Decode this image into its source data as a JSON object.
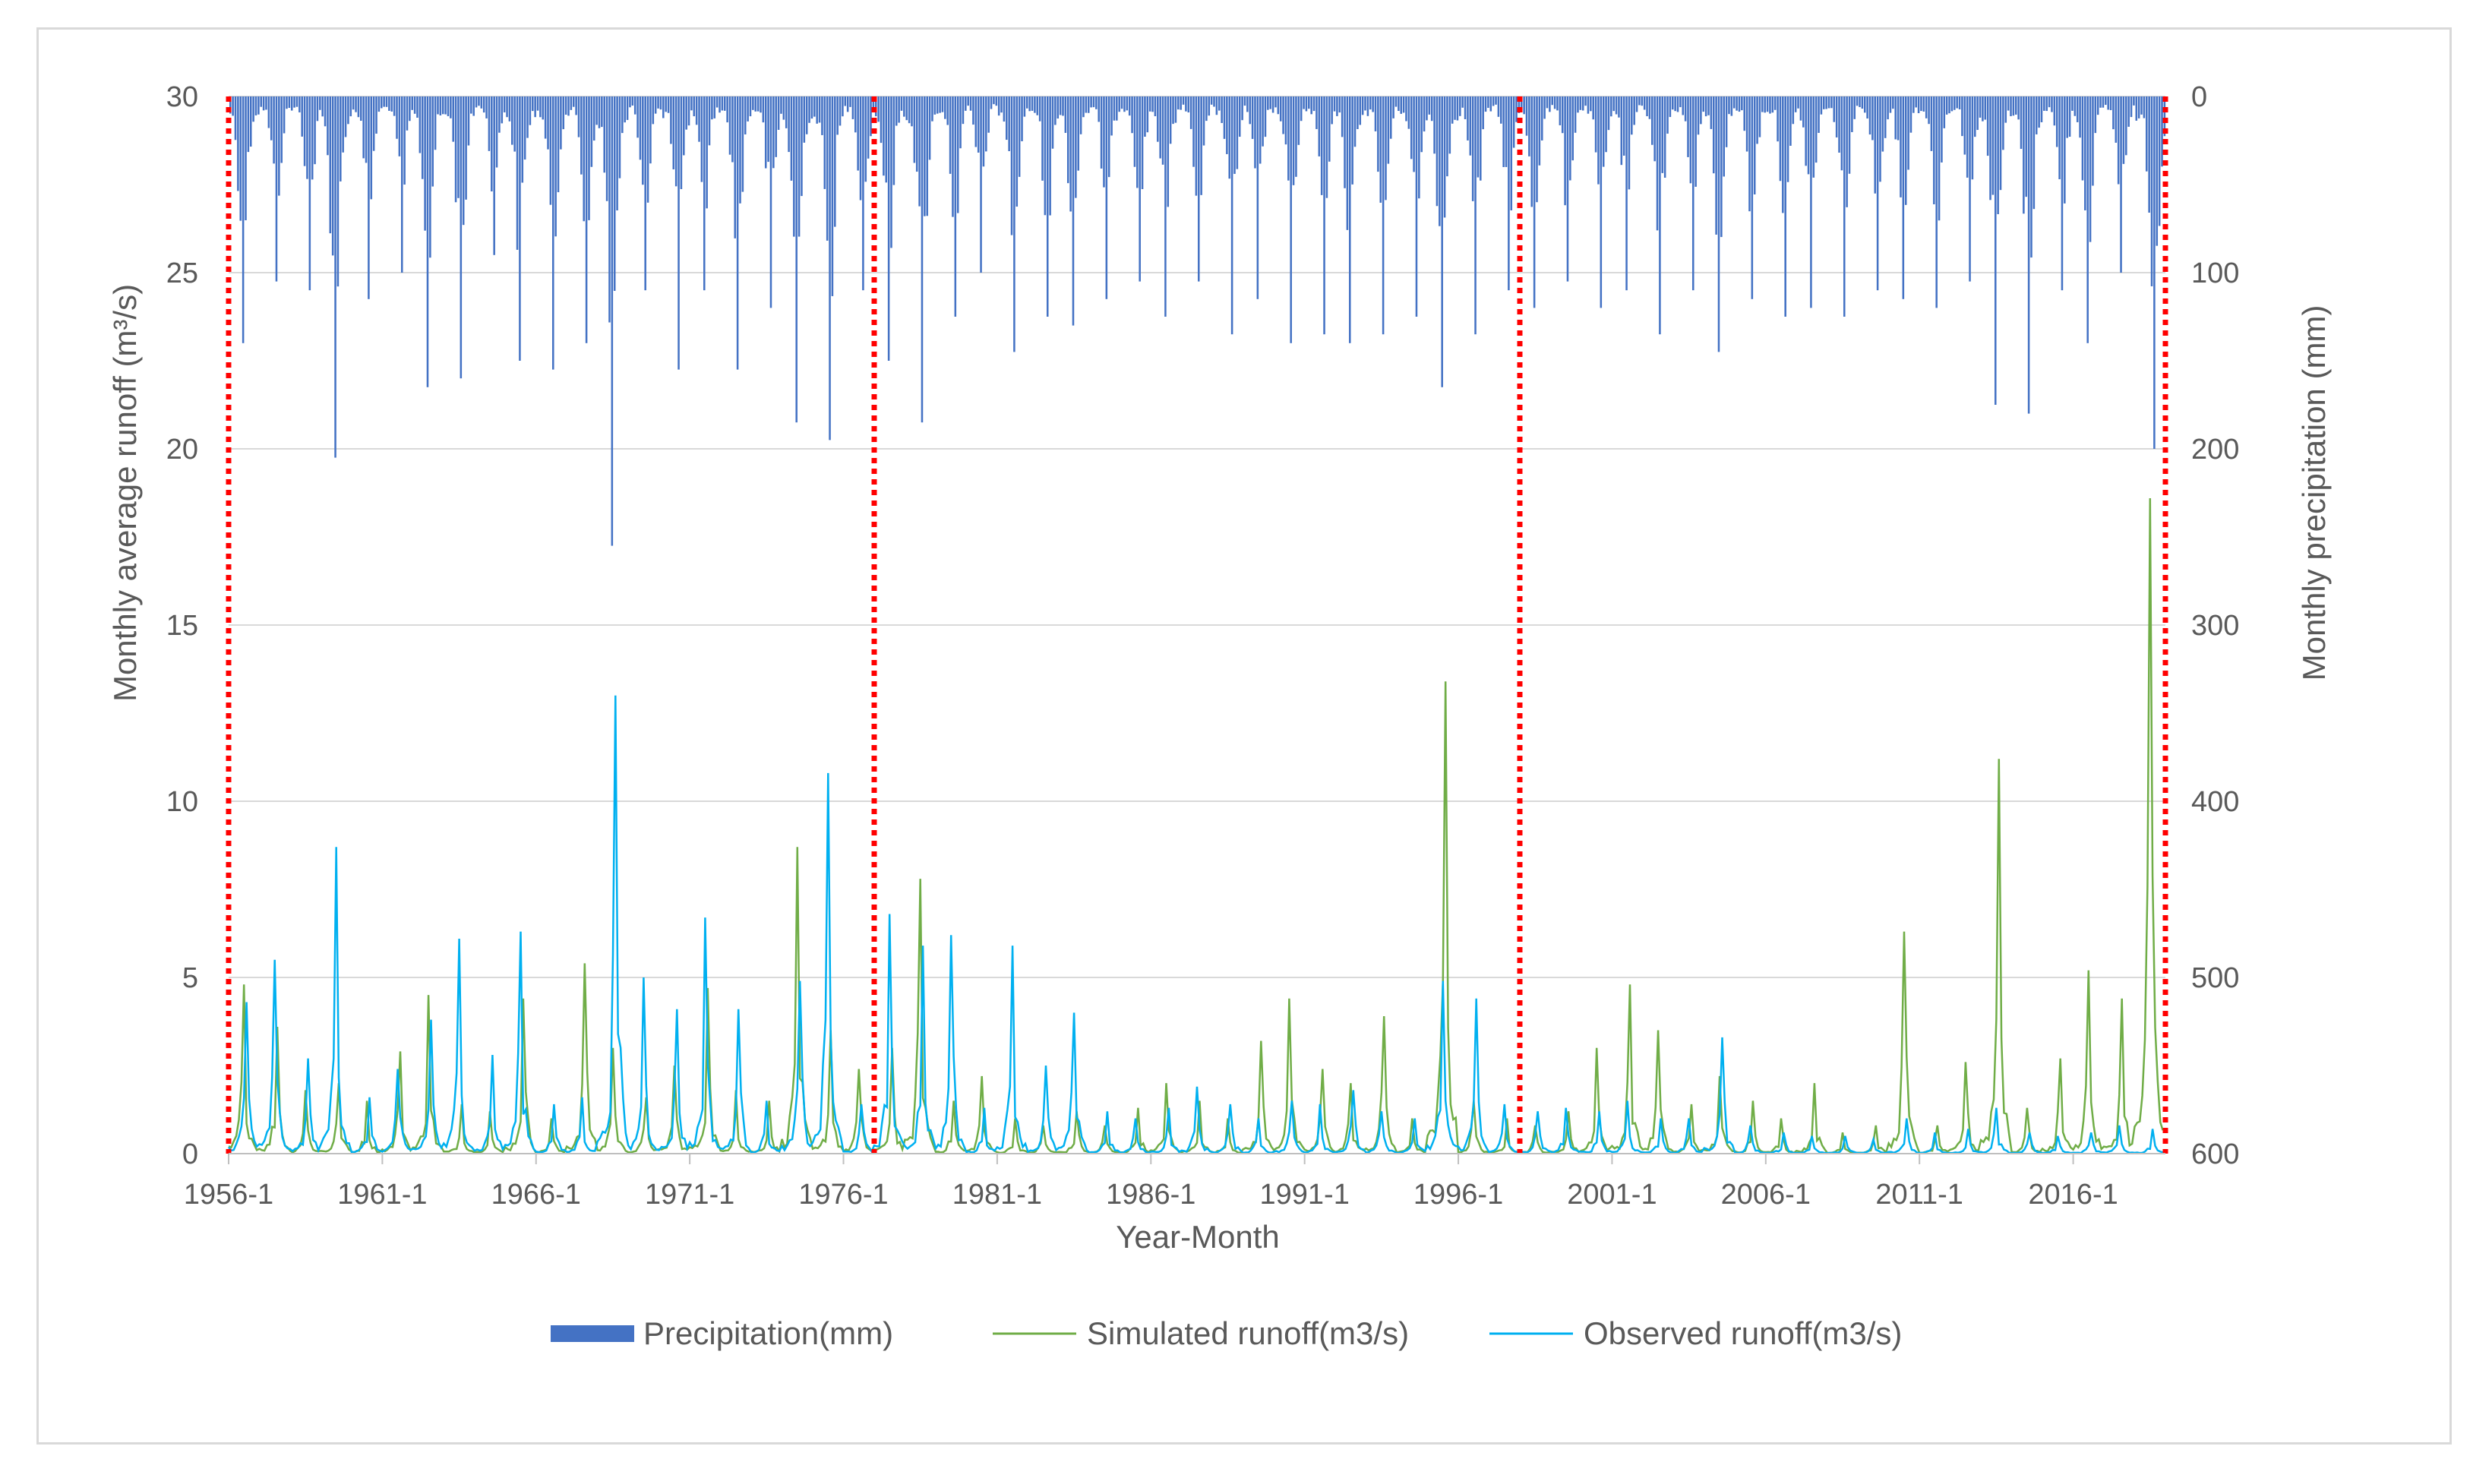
{
  "chart_data": {
    "type": "line",
    "title": "",
    "xlabel": "Year-Month",
    "ylabel_left": "Monthly average runoff (m³/s)",
    "ylabel_right": "Monthly precipitation (mm)",
    "ylim_left": [
      0,
      30
    ],
    "yticks_left": [
      "0",
      "5",
      "10",
      "15",
      "20",
      "25",
      "30"
    ],
    "ylim_right": [
      600,
      0
    ],
    "yticks_right": [
      "0",
      "100",
      "200",
      "300",
      "400",
      "500",
      "600"
    ],
    "right_axis_reversed": true,
    "x_range": [
      "1956-1",
      "2018-12"
    ],
    "xticks": [
      "1956-1",
      "1961-1",
      "1966-1",
      "1971-1",
      "1976-1",
      "1981-1",
      "1986-1",
      "1991-1",
      "1996-1",
      "2001-1",
      "2006-1",
      "2011-1",
      "2016-1"
    ],
    "grid": "horizontal",
    "legend_position": "bottom",
    "period_dividers": [
      "1956-1",
      "1977-1",
      "1998-1",
      "2018-12"
    ],
    "divider_color": "#ff0000",
    "series": [
      {
        "name": "Precipitation(mm)",
        "type": "bar",
        "axis": "right",
        "color": "#4472c4",
        "annual_peaks": [
          {
            "year": 1956,
            "value": 140
          },
          {
            "year": 1957,
            "value": 105
          },
          {
            "year": 1958,
            "value": 110
          },
          {
            "year": 1959,
            "value": 205
          },
          {
            "year": 1960,
            "value": 115
          },
          {
            "year": 1961,
            "value": 100
          },
          {
            "year": 1962,
            "value": 165
          },
          {
            "year": 1963,
            "value": 160
          },
          {
            "year": 1964,
            "value": 90
          },
          {
            "year": 1965,
            "value": 150
          },
          {
            "year": 1966,
            "value": 155
          },
          {
            "year": 1967,
            "value": 140
          },
          {
            "year": 1968,
            "value": 255
          },
          {
            "year": 1969,
            "value": 110
          },
          {
            "year": 1970,
            "value": 155
          },
          {
            "year": 1971,
            "value": 110
          },
          {
            "year": 1972,
            "value": 155
          },
          {
            "year": 1973,
            "value": 120
          },
          {
            "year": 1974,
            "value": 185
          },
          {
            "year": 1975,
            "value": 195
          },
          {
            "year": 1976,
            "value": 110
          },
          {
            "year": 1977,
            "value": 150
          },
          {
            "year": 1978,
            "value": 185
          },
          {
            "year": 1979,
            "value": 125
          },
          {
            "year": 1980,
            "value": 100
          },
          {
            "year": 1981,
            "value": 145
          },
          {
            "year": 1982,
            "value": 125
          },
          {
            "year": 1983,
            "value": 130
          },
          {
            "year": 1984,
            "value": 115
          },
          {
            "year": 1985,
            "value": 105
          },
          {
            "year": 1986,
            "value": 125
          },
          {
            "year": 1987,
            "value": 105
          },
          {
            "year": 1988,
            "value": 135
          },
          {
            "year": 1989,
            "value": 115
          },
          {
            "year": 1990,
            "value": 140
          },
          {
            "year": 1991,
            "value": 135
          },
          {
            "year": 1992,
            "value": 140
          },
          {
            "year": 1993,
            "value": 135
          },
          {
            "year": 1994,
            "value": 125
          },
          {
            "year": 1995,
            "value": 165
          },
          {
            "year": 1996,
            "value": 135
          },
          {
            "year": 1997,
            "value": 110
          },
          {
            "year": 1998,
            "value": 120
          },
          {
            "year": 1999,
            "value": 105
          },
          {
            "year": 2000,
            "value": 120
          },
          {
            "year": 2001,
            "value": 110
          },
          {
            "year": 2002,
            "value": 135
          },
          {
            "year": 2003,
            "value": 110
          },
          {
            "year": 2004,
            "value": 145
          },
          {
            "year": 2005,
            "value": 115
          },
          {
            "year": 2006,
            "value": 125
          },
          {
            "year": 2007,
            "value": 120
          },
          {
            "year": 2008,
            "value": 125
          },
          {
            "year": 2009,
            "value": 110
          },
          {
            "year": 2010,
            "value": 115
          },
          {
            "year": 2011,
            "value": 120
          },
          {
            "year": 2012,
            "value": 105
          },
          {
            "year": 2013,
            "value": 175
          },
          {
            "year": 2014,
            "value": 180
          },
          {
            "year": 2015,
            "value": 110
          },
          {
            "year": 2016,
            "value": 140
          },
          {
            "year": 2017,
            "value": 100
          },
          {
            "year": 2018,
            "value": 200
          }
        ]
      },
      {
        "name": "Simulated runoff(m3/s)",
        "type": "line",
        "axis": "left",
        "color": "#70ad47",
        "annual_peaks": [
          {
            "year": 1956,
            "value": 4.8
          },
          {
            "year": 1957,
            "value": 3.6
          },
          {
            "year": 1958,
            "value": 1.8
          },
          {
            "year": 1959,
            "value": 2.0
          },
          {
            "year": 1960,
            "value": 1.5
          },
          {
            "year": 1961,
            "value": 2.9
          },
          {
            "year": 1962,
            "value": 4.5
          },
          {
            "year": 1963,
            "value": 1.4
          },
          {
            "year": 1964,
            "value": 1.2
          },
          {
            "year": 1965,
            "value": 4.4
          },
          {
            "year": 1966,
            "value": 1.0
          },
          {
            "year": 1967,
            "value": 5.4
          },
          {
            "year": 1968,
            "value": 3.0
          },
          {
            "year": 1969,
            "value": 1.6
          },
          {
            "year": 1970,
            "value": 2.5
          },
          {
            "year": 1971,
            "value": 4.7
          },
          {
            "year": 1972,
            "value": 1.8
          },
          {
            "year": 1973,
            "value": 1.5
          },
          {
            "year": 1974,
            "value": 8.7
          },
          {
            "year": 1975,
            "value": 3.5
          },
          {
            "year": 1976,
            "value": 2.4
          },
          {
            "year": 1977,
            "value": 3.0
          },
          {
            "year": 1978,
            "value": 7.8
          },
          {
            "year": 1979,
            "value": 1.5
          },
          {
            "year": 1980,
            "value": 2.2
          },
          {
            "year": 1981,
            "value": 1.0
          },
          {
            "year": 1982,
            "value": 0.8
          },
          {
            "year": 1983,
            "value": 1.2
          },
          {
            "year": 1984,
            "value": 0.8
          },
          {
            "year": 1985,
            "value": 1.3
          },
          {
            "year": 1986,
            "value": 2.0
          },
          {
            "year": 1987,
            "value": 1.5
          },
          {
            "year": 1988,
            "value": 1.0
          },
          {
            "year": 1989,
            "value": 3.2
          },
          {
            "year": 1990,
            "value": 4.4
          },
          {
            "year": 1991,
            "value": 2.4
          },
          {
            "year": 1992,
            "value": 2.0
          },
          {
            "year": 1993,
            "value": 3.9
          },
          {
            "year": 1994,
            "value": 1.0
          },
          {
            "year": 1995,
            "value": 13.4
          },
          {
            "year": 1996,
            "value": 1.5
          },
          {
            "year": 1997,
            "value": 1.0
          },
          {
            "year": 1998,
            "value": 0.8
          },
          {
            "year": 1999,
            "value": 1.2
          },
          {
            "year": 2000,
            "value": 3.0
          },
          {
            "year": 2001,
            "value": 4.8
          },
          {
            "year": 2002,
            "value": 3.5
          },
          {
            "year": 2003,
            "value": 1.4
          },
          {
            "year": 2004,
            "value": 2.2
          },
          {
            "year": 2005,
            "value": 1.5
          },
          {
            "year": 2006,
            "value": 1.0
          },
          {
            "year": 2007,
            "value": 2.0
          },
          {
            "year": 2008,
            "value": 0.6
          },
          {
            "year": 2009,
            "value": 0.8
          },
          {
            "year": 2010,
            "value": 6.3
          },
          {
            "year": 2011,
            "value": 0.8
          },
          {
            "year": 2012,
            "value": 2.6
          },
          {
            "year": 2013,
            "value": 11.2
          },
          {
            "year": 2014,
            "value": 1.3
          },
          {
            "year": 2015,
            "value": 2.7
          },
          {
            "year": 2016,
            "value": 5.2
          },
          {
            "year": 2017,
            "value": 4.4
          },
          {
            "year": 2018,
            "value": 18.6
          }
        ]
      },
      {
        "name": "Observed runoff(m3/s)",
        "type": "line",
        "axis": "left",
        "color": "#00b0f0",
        "annual_peaks": [
          {
            "year": 1956,
            "value": 4.3
          },
          {
            "year": 1957,
            "value": 5.5
          },
          {
            "year": 1958,
            "value": 2.7
          },
          {
            "year": 1959,
            "value": 8.7
          },
          {
            "year": 1960,
            "value": 1.6
          },
          {
            "year": 1961,
            "value": 2.4
          },
          {
            "year": 1962,
            "value": 3.8
          },
          {
            "year": 1963,
            "value": 6.1
          },
          {
            "year": 1964,
            "value": 2.8
          },
          {
            "year": 1965,
            "value": 6.3
          },
          {
            "year": 1966,
            "value": 1.4
          },
          {
            "year": 1967,
            "value": 1.6
          },
          {
            "year": 1968,
            "value": 13.0
          },
          {
            "year": 1969,
            "value": 5.0
          },
          {
            "year": 1970,
            "value": 4.1
          },
          {
            "year": 1971,
            "value": 6.7
          },
          {
            "year": 1972,
            "value": 4.1
          },
          {
            "year": 1973,
            "value": 1.5
          },
          {
            "year": 1974,
            "value": 4.9
          },
          {
            "year": 1975,
            "value": 10.8
          },
          {
            "year": 1976,
            "value": 1.4
          },
          {
            "year": 1977,
            "value": 6.8
          },
          {
            "year": 1978,
            "value": 5.9
          },
          {
            "year": 1979,
            "value": 6.2
          },
          {
            "year": 1980,
            "value": 1.3
          },
          {
            "year": 1981,
            "value": 5.9
          },
          {
            "year": 1982,
            "value": 2.5
          },
          {
            "year": 1983,
            "value": 4.0
          },
          {
            "year": 1984,
            "value": 1.2
          },
          {
            "year": 1985,
            "value": 1.0
          },
          {
            "year": 1986,
            "value": 1.3
          },
          {
            "year": 1987,
            "value": 1.9
          },
          {
            "year": 1988,
            "value": 1.4
          },
          {
            "year": 1989,
            "value": 1.0
          },
          {
            "year": 1990,
            "value": 1.5
          },
          {
            "year": 1991,
            "value": 1.4
          },
          {
            "year": 1992,
            "value": 1.8
          },
          {
            "year": 1993,
            "value": 1.2
          },
          {
            "year": 1994,
            "value": 1.0
          },
          {
            "year": 1995,
            "value": 4.9
          },
          {
            "year": 1996,
            "value": 4.4
          },
          {
            "year": 1997,
            "value": 1.4
          },
          {
            "year": 1998,
            "value": 1.2
          },
          {
            "year": 1999,
            "value": 1.3
          },
          {
            "year": 2000,
            "value": 1.2
          },
          {
            "year": 2001,
            "value": 1.5
          },
          {
            "year": 2002,
            "value": 1.0
          },
          {
            "year": 2003,
            "value": 1.0
          },
          {
            "year": 2004,
            "value": 3.3
          },
          {
            "year": 2005,
            "value": 0.8
          },
          {
            "year": 2006,
            "value": 0.6
          },
          {
            "year": 2007,
            "value": 0.5
          },
          {
            "year": 2008,
            "value": 0.5
          },
          {
            "year": 2009,
            "value": 0.4
          },
          {
            "year": 2010,
            "value": 1.0
          },
          {
            "year": 2011,
            "value": 0.6
          },
          {
            "year": 2012,
            "value": 0.7
          },
          {
            "year": 2013,
            "value": 1.3
          },
          {
            "year": 2014,
            "value": 0.6
          },
          {
            "year": 2015,
            "value": 0.5
          },
          {
            "year": 2016,
            "value": 0.6
          },
          {
            "year": 2017,
            "value": 0.8
          },
          {
            "year": 2018,
            "value": 0.7
          }
        ]
      }
    ]
  }
}
